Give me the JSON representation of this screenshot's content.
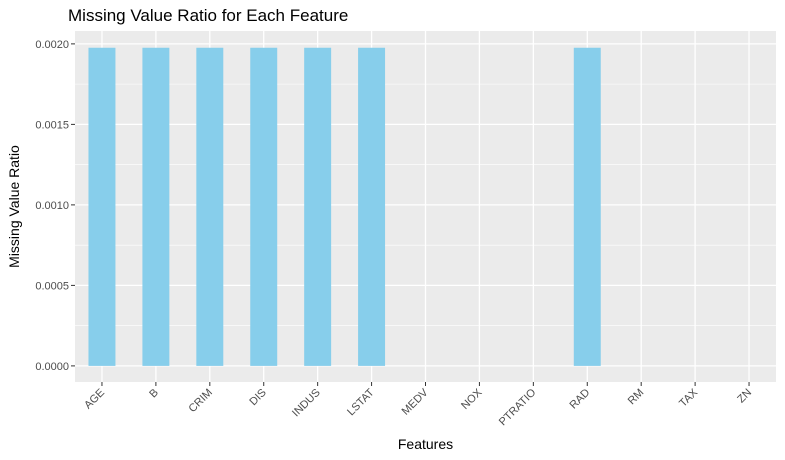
{
  "chart_data": {
    "type": "bar",
    "title": "Missing Value Ratio for Each Feature",
    "xlabel": "Features",
    "ylabel": "Missing Value Ratio",
    "categories": [
      "AGE",
      "B",
      "CRIM",
      "DIS",
      "INDUS",
      "LSTAT",
      "MEDV",
      "NOX",
      "PTRATIO",
      "RAD",
      "RM",
      "TAX",
      "ZN"
    ],
    "values": [
      0.001976,
      0.001976,
      0.001976,
      0.001976,
      0.001976,
      0.001976,
      0,
      0,
      0,
      0.001976,
      0,
      0,
      0
    ],
    "yticks": [
      "0.0000",
      "0.0005",
      "0.0010",
      "0.0015",
      "0.0020"
    ],
    "ylim": [
      -0.0001,
      0.00208
    ],
    "grid": true,
    "legend": "none",
    "colors": {
      "bar": "#87ceeb",
      "panel": "#ebebeb",
      "grid": "#ffffff"
    }
  }
}
